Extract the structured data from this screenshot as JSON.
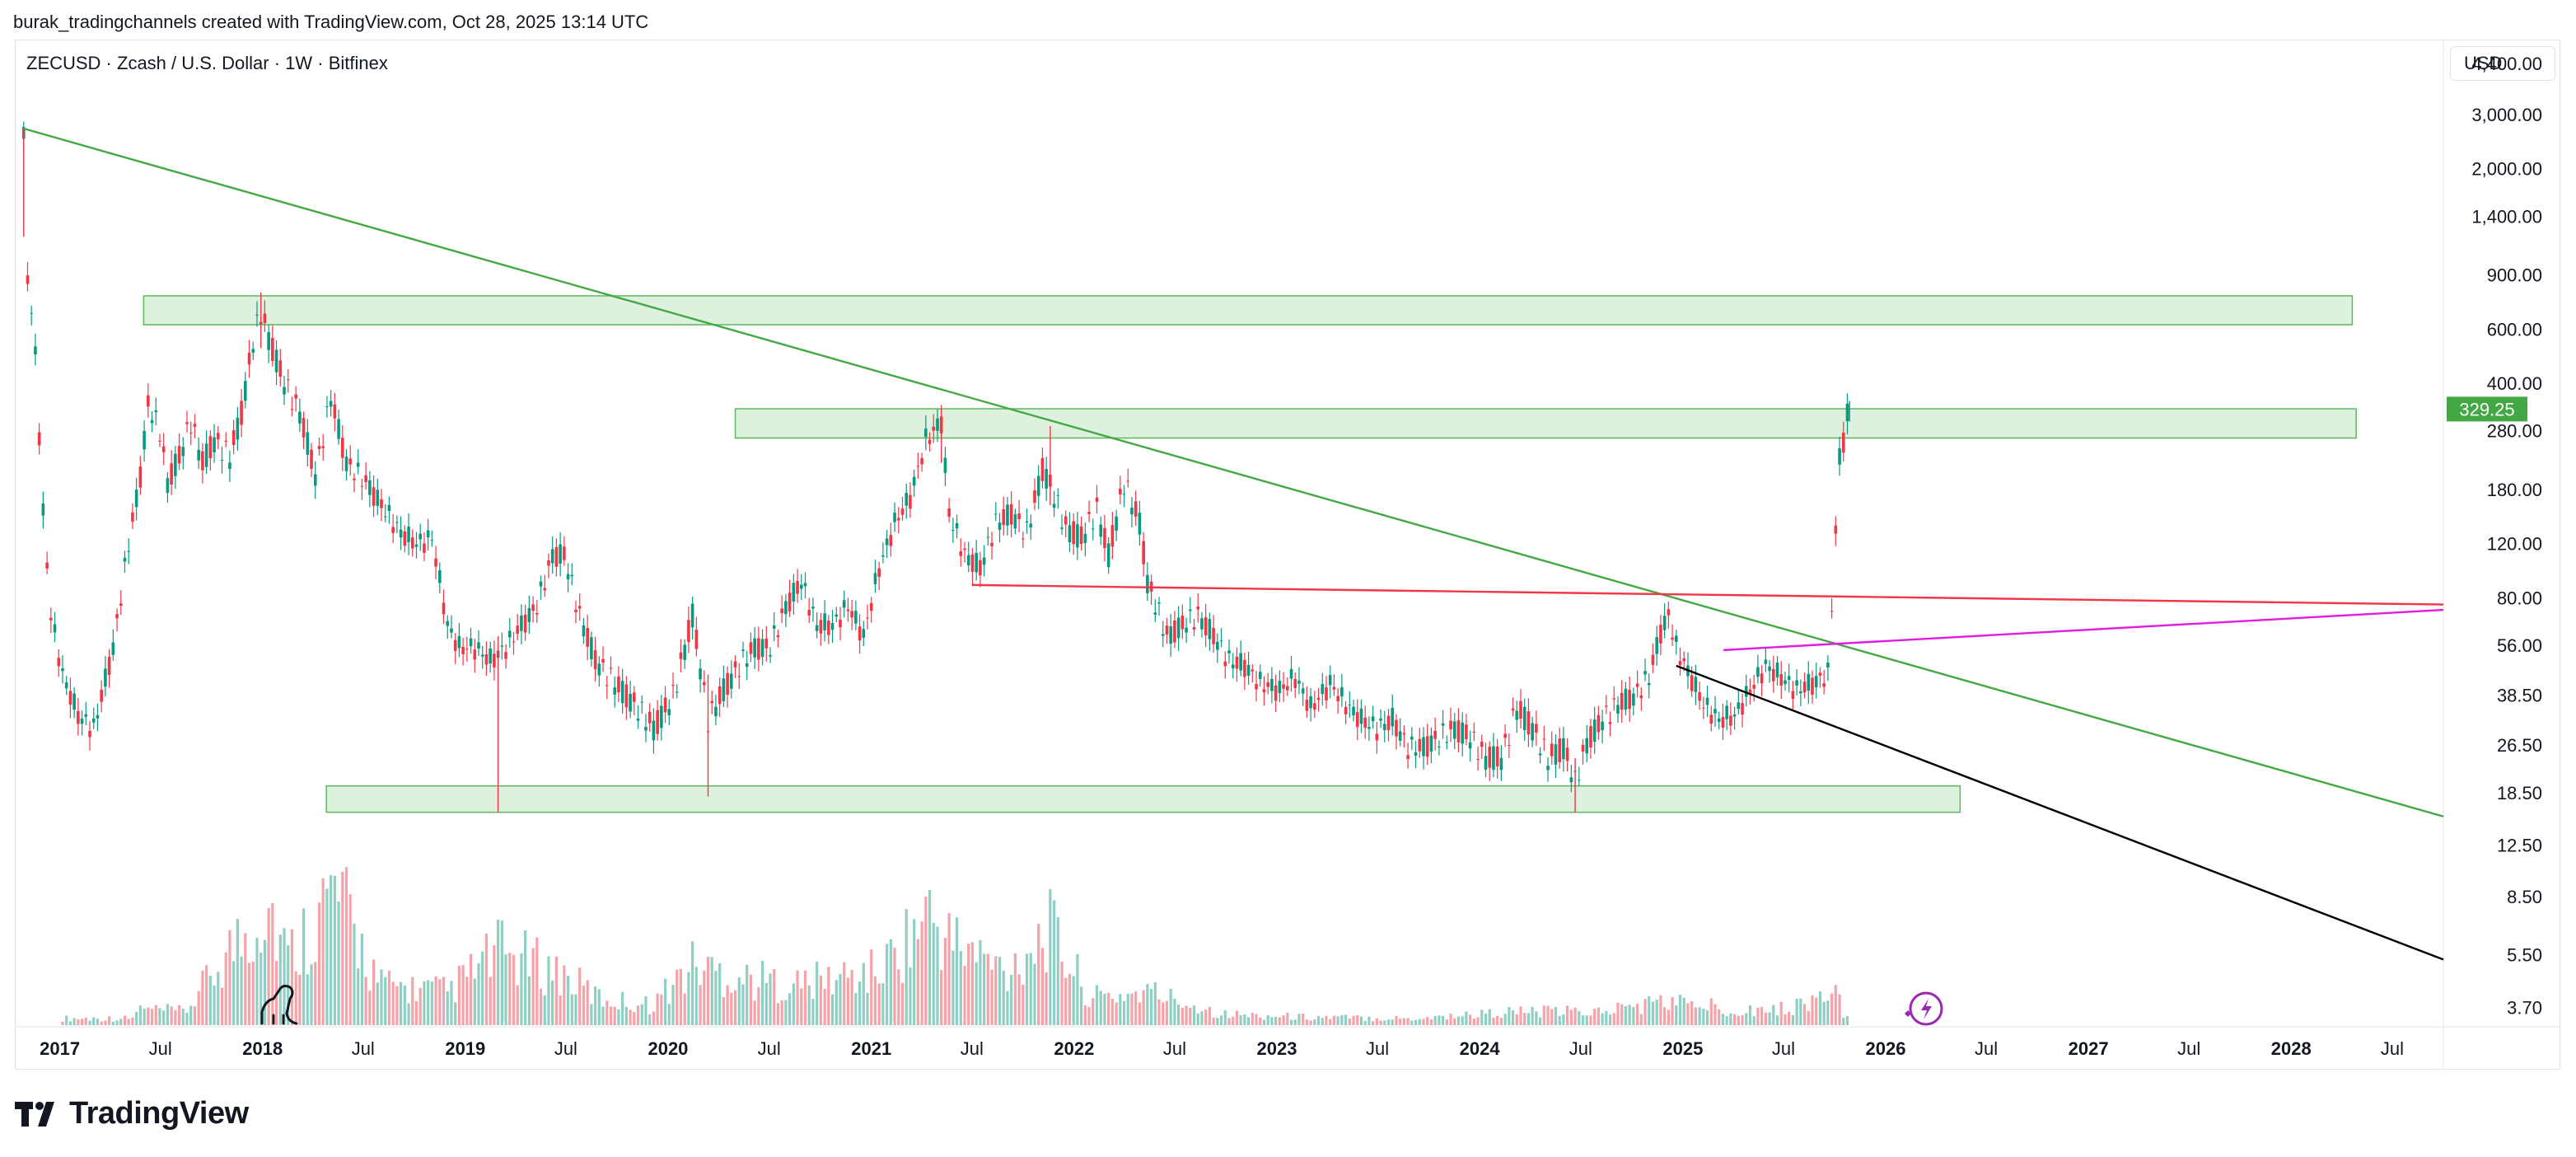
{
  "header": {
    "attribution": "burak_tradingchannels created with TradingView.com, Oct 28, 2025 13:14 UTC"
  },
  "legend": {
    "symbol_line": "ZECUSD · Zcash / U.S. Dollar · 1W · Bitfinex"
  },
  "price_scale": {
    "currency": "USD"
  },
  "brand": {
    "name": "TradingView"
  },
  "icons": [
    "tradingview-logo-icon",
    "dino-icon",
    "lightning-icon"
  ],
  "colors": {
    "up": "#089981",
    "down": "#f23645",
    "volume_up": "#8fcfc3",
    "volume_down": "#f5a3a9",
    "zone_fill": "#d8eed8",
    "zone_stroke": "#5cb85c",
    "green_line": "#43a843",
    "red_line": "#f23645",
    "magenta_line": "#e01de0",
    "black_line": "#000000",
    "last_price_bg": "#43a843"
  },
  "chart_data": {
    "type": "candlestick",
    "title": "ZECUSD · Zcash / U.S. Dollar · 1W · Bitfinex",
    "scale": "log",
    "ylim": [
      3.2,
      5200
    ],
    "xlim": [
      "2016-10-15",
      "2028-10-01"
    ],
    "grid": false,
    "y_ticks": [
      "4,400.00",
      "3,000.00",
      "2,000.00",
      "1,400.00",
      "900.00",
      "600.00",
      "400.00",
      "280.00",
      "180.00",
      "120.00",
      "80.00",
      "56.00",
      "38.50",
      "26.50",
      "18.50",
      "12.50",
      "8.50",
      "5.50",
      "3.70"
    ],
    "x_ticks": [
      {
        "label": "2017",
        "date": "2017-01-01",
        "bold": true
      },
      {
        "label": "Jul",
        "date": "2017-07-01",
        "bold": false
      },
      {
        "label": "2018",
        "date": "2018-01-01",
        "bold": true
      },
      {
        "label": "Jul",
        "date": "2018-07-01",
        "bold": false
      },
      {
        "label": "2019",
        "date": "2019-01-01",
        "bold": true
      },
      {
        "label": "Jul",
        "date": "2019-07-01",
        "bold": false
      },
      {
        "label": "2020",
        "date": "2020-01-01",
        "bold": true
      },
      {
        "label": "Jul",
        "date": "2020-07-01",
        "bold": false
      },
      {
        "label": "2021",
        "date": "2021-01-01",
        "bold": true
      },
      {
        "label": "Jul",
        "date": "2021-07-01",
        "bold": false
      },
      {
        "label": "2022",
        "date": "2022-01-01",
        "bold": true
      },
      {
        "label": "Jul",
        "date": "2022-07-01",
        "bold": false
      },
      {
        "label": "2023",
        "date": "2023-01-01",
        "bold": true
      },
      {
        "label": "Jul",
        "date": "2023-07-01",
        "bold": false
      },
      {
        "label": "2024",
        "date": "2024-01-01",
        "bold": true
      },
      {
        "label": "Jul",
        "date": "2024-07-01",
        "bold": false
      },
      {
        "label": "2025",
        "date": "2025-01-01",
        "bold": true
      },
      {
        "label": "Jul",
        "date": "2025-07-01",
        "bold": false
      },
      {
        "label": "2026",
        "date": "2026-01-01",
        "bold": true
      },
      {
        "label": "Jul",
        "date": "2026-07-01",
        "bold": false
      },
      {
        "label": "2027",
        "date": "2027-01-01",
        "bold": true
      },
      {
        "label": "Jul",
        "date": "2027-07-01",
        "bold": false
      },
      {
        "label": "2028",
        "date": "2028-01-01",
        "bold": true
      },
      {
        "label": "Jul",
        "date": "2028-07-01",
        "bold": false
      }
    ],
    "last_price": {
      "value": 329.25,
      "label": "329.25"
    },
    "price_path": [
      [
        "2016-10-28",
        2500
      ],
      [
        "2016-11-04",
        900
      ],
      [
        "2016-11-18",
        500
      ],
      [
        "2016-12-02",
        150
      ],
      [
        "2016-12-16",
        70
      ],
      [
        "2017-01-06",
        45
      ],
      [
        "2017-02-03",
        33
      ],
      [
        "2017-03-03",
        30
      ],
      [
        "2017-04-07",
        55
      ],
      [
        "2017-05-05",
        120
      ],
      [
        "2017-05-26",
        200
      ],
      [
        "2017-06-09",
        340
      ],
      [
        "2017-06-30",
        280
      ],
      [
        "2017-07-14",
        190
      ],
      [
        "2017-08-04",
        230
      ],
      [
        "2017-08-25",
        300
      ],
      [
        "2017-09-15",
        220
      ],
      [
        "2017-10-06",
        260
      ],
      [
        "2017-11-03",
        230
      ],
      [
        "2017-11-24",
        320
      ],
      [
        "2017-12-15",
        550
      ],
      [
        "2017-12-29",
        680
      ],
      [
        "2018-01-12",
        560
      ],
      [
        "2018-02-09",
        400
      ],
      [
        "2018-03-09",
        320
      ],
      [
        "2018-04-06",
        200
      ],
      [
        "2018-05-04",
        360
      ],
      [
        "2018-06-01",
        220
      ],
      [
        "2018-07-06",
        190
      ],
      [
        "2018-08-03",
        160
      ],
      [
        "2018-09-07",
        130
      ],
      [
        "2018-10-05",
        120
      ],
      [
        "2018-11-02",
        125
      ],
      [
        "2018-11-30",
        65
      ],
      [
        "2018-12-21",
        55
      ],
      [
        "2019-01-18",
        55
      ],
      [
        "2019-02-15",
        50
      ],
      [
        "2019-03-15",
        55
      ],
      [
        "2019-04-12",
        65
      ],
      [
        "2019-05-10",
        75
      ],
      [
        "2019-06-07",
        110
      ],
      [
        "2019-06-28",
        110
      ],
      [
        "2019-07-26",
        70
      ],
      [
        "2019-08-23",
        50
      ],
      [
        "2019-09-27",
        42
      ],
      [
        "2019-11-01",
        36
      ],
      [
        "2019-12-06",
        30
      ],
      [
        "2020-01-10",
        38
      ],
      [
        "2020-02-14",
        70
      ],
      [
        "2020-03-13",
        32
      ],
      [
        "2020-04-10",
        40
      ],
      [
        "2020-05-08",
        48
      ],
      [
        "2020-06-05",
        55
      ],
      [
        "2020-07-03",
        55
      ],
      [
        "2020-07-31",
        75
      ],
      [
        "2020-08-28",
        90
      ],
      [
        "2020-09-25",
        65
      ],
      [
        "2020-10-23",
        65
      ],
      [
        "2020-11-20",
        75
      ],
      [
        "2020-12-18",
        60
      ],
      [
        "2021-01-15",
        100
      ],
      [
        "2021-02-12",
        140
      ],
      [
        "2021-03-12",
        170
      ],
      [
        "2021-04-09",
        260
      ],
      [
        "2021-05-07",
        300
      ],
      [
        "2021-05-21",
        150
      ],
      [
        "2021-06-18",
        110
      ],
      [
        "2021-07-16",
        100
      ],
      [
        "2021-08-13",
        140
      ],
      [
        "2021-09-10",
        150
      ],
      [
        "2021-10-08",
        130
      ],
      [
        "2021-11-05",
        210
      ],
      [
        "2021-11-19",
        185
      ],
      [
        "2021-12-17",
        135
      ],
      [
        "2022-01-14",
        125
      ],
      [
        "2022-02-11",
        155
      ],
      [
        "2022-03-04",
        110
      ],
      [
        "2022-04-01",
        190
      ],
      [
        "2022-04-29",
        140
      ],
      [
        "2022-05-13",
        90
      ],
      [
        "2022-06-17",
        60
      ],
      [
        "2022-07-15",
        65
      ],
      [
        "2022-08-12",
        70
      ],
      [
        "2022-09-09",
        60
      ],
      [
        "2022-10-07",
        50
      ],
      [
        "2022-11-04",
        48
      ],
      [
        "2022-12-02",
        42
      ],
      [
        "2023-01-06",
        40
      ],
      [
        "2023-02-03",
        44
      ],
      [
        "2023-03-03",
        35
      ],
      [
        "2023-04-07",
        42
      ],
      [
        "2023-05-05",
        36
      ],
      [
        "2023-06-02",
        32
      ],
      [
        "2023-06-30",
        30
      ],
      [
        "2023-07-28",
        32
      ],
      [
        "2023-08-25",
        26
      ],
      [
        "2023-09-22",
        26
      ],
      [
        "2023-10-20",
        28
      ],
      [
        "2023-11-17",
        30
      ],
      [
        "2023-12-15",
        28
      ],
      [
        "2024-01-12",
        24
      ],
      [
        "2024-02-09",
        24
      ],
      [
        "2024-03-08",
        35
      ],
      [
        "2024-04-05",
        30
      ],
      [
        "2024-05-03",
        24
      ],
      [
        "2024-05-31",
        26
      ],
      [
        "2024-06-21",
        20
      ],
      [
        "2024-07-12",
        27
      ],
      [
        "2024-08-09",
        32
      ],
      [
        "2024-09-06",
        36
      ],
      [
        "2024-10-04",
        38
      ],
      [
        "2024-11-01",
        44
      ],
      [
        "2024-11-22",
        62
      ],
      [
        "2024-12-06",
        70
      ],
      [
        "2024-12-20",
        55
      ],
      [
        "2025-01-10",
        46
      ],
      [
        "2025-02-07",
        36
      ],
      [
        "2025-03-07",
        32
      ],
      [
        "2025-04-04",
        33
      ],
      [
        "2025-05-02",
        40
      ],
      [
        "2025-05-30",
        48
      ],
      [
        "2025-06-27",
        44
      ],
      [
        "2025-07-25",
        40
      ],
      [
        "2025-08-22",
        42
      ],
      [
        "2025-09-19",
        45
      ],
      [
        "2025-10-03",
        130
      ],
      [
        "2025-10-10",
        230
      ],
      [
        "2025-10-17",
        260
      ],
      [
        "2025-10-24",
        320
      ],
      [
        "2025-10-28",
        329.25
      ]
    ],
    "wick_extremes": [
      {
        "date": "2016-10-28",
        "high": 2700,
        "low": 1200
      },
      {
        "date": "2017-12-29",
        "high": 790,
        "low": 520
      },
      {
        "date": "2019-03-01",
        "high": 60,
        "low": 16
      },
      {
        "date": "2020-03-13",
        "high": 45,
        "low": 18
      },
      {
        "date": "2021-05-07",
        "high": 330,
        "low": 220
      },
      {
        "date": "2021-11-19",
        "high": 290,
        "low": 160
      },
      {
        "date": "2024-06-21",
        "high": 24,
        "low": 16
      }
    ],
    "zones": [
      {
        "name": "zone-upper",
        "from": "2017-06-01",
        "to": "2028-04-20",
        "top": 770,
        "bottom": 620
      },
      {
        "name": "zone-mid",
        "from": "2020-05-01",
        "to": "2028-04-27",
        "top": 330,
        "bottom": 265
      },
      {
        "name": "zone-lower",
        "from": "2018-04-26",
        "to": "2026-05-15",
        "top": 19.5,
        "bottom": 16
      }
    ],
    "trendlines": [
      {
        "name": "green-downtrend",
        "color": "green_line",
        "from": [
          "2016-10-28",
          2700
        ],
        "to": [
          "2028-10-01",
          15.5
        ]
      },
      {
        "name": "red-horizontal",
        "color": "red_line",
        "from": [
          "2021-07-01",
          88
        ],
        "to": [
          "2028-10-01",
          76
        ]
      },
      {
        "name": "magenta-resistance",
        "color": "magenta_line",
        "from": [
          "2025-03-15",
          54
        ],
        "to": [
          "2028-10-01",
          73
        ]
      },
      {
        "name": "black-downtrend",
        "color": "black_line",
        "from": [
          "2024-12-20",
          48
        ],
        "to": [
          "2028-10-01",
          5.3
        ]
      }
    ],
    "volume_note": "relative weekly volume bars, tallest around late 2017, 2018 Q2 and 2021 spikes",
    "volume_series": [
      [
        "2017-05-15",
        0.12
      ],
      [
        "2017-08-15",
        0.1
      ],
      [
        "2017-11-01",
        0.55
      ],
      [
        "2017-12-10",
        0.72
      ],
      [
        "2018-01-10",
        0.95
      ],
      [
        "2018-02-15",
        0.5
      ],
      [
        "2018-05-10",
        1.0
      ],
      [
        "2018-08-01",
        0.3
      ],
      [
        "2018-12-01",
        0.25
      ],
      [
        "2019-03-01",
        0.55
      ],
      [
        "2019-06-15",
        0.4
      ],
      [
        "2019-09-01",
        0.2
      ],
      [
        "2019-12-01",
        0.15
      ],
      [
        "2020-02-15",
        0.45
      ],
      [
        "2020-05-15",
        0.35
      ],
      [
        "2020-08-15",
        0.3
      ],
      [
        "2021-01-15",
        0.4
      ],
      [
        "2021-04-15",
        0.83
      ],
      [
        "2021-05-15",
        0.65
      ],
      [
        "2021-09-01",
        0.4
      ],
      [
        "2021-11-15",
        0.72
      ],
      [
        "2022-02-01",
        0.2
      ],
      [
        "2022-05-15",
        0.25
      ],
      [
        "2022-10-01",
        0.08
      ],
      [
        "2023-03-01",
        0.06
      ],
      [
        "2023-09-01",
        0.05
      ],
      [
        "2024-03-01",
        0.1
      ],
      [
        "2024-08-01",
        0.1
      ],
      [
        "2024-12-01",
        0.18
      ],
      [
        "2025-04-01",
        0.12
      ],
      [
        "2025-07-01",
        0.12
      ],
      [
        "2025-10-10",
        0.25
      ]
    ]
  }
}
